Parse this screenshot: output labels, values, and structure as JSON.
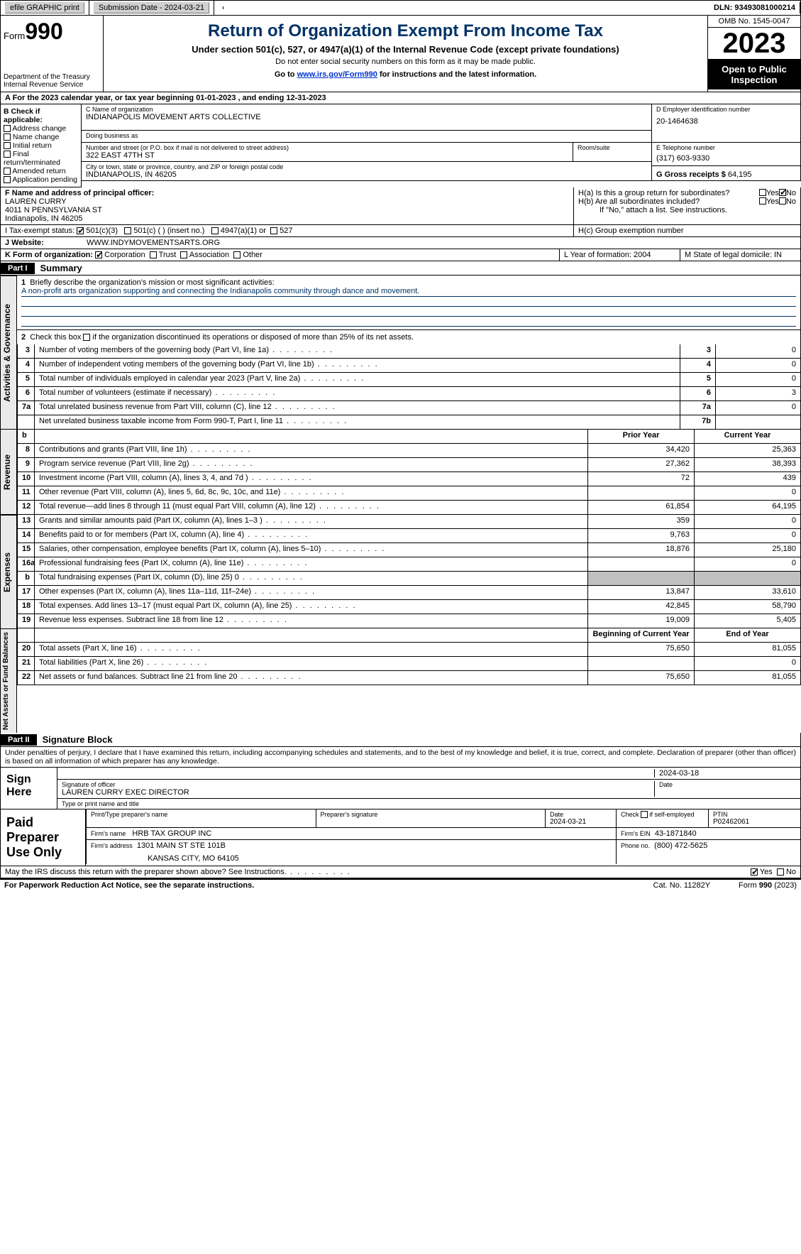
{
  "topbar": {
    "efile": "efile GRAPHIC print",
    "submission": "Submission Date - 2024-03-21",
    "dln": "DLN: 93493081000214"
  },
  "header": {
    "form_label": "Form",
    "form_no": "990",
    "dept": "Department of the Treasury Internal Revenue Service",
    "title": "Return of Organization Exempt From Income Tax",
    "subtitle": "Under section 501(c), 527, or 4947(a)(1) of the Internal Revenue Code (except private foundations)",
    "note1": "Do not enter social security numbers on this form as it may be made public.",
    "note2_pre": "Go to ",
    "note2_link": "www.irs.gov/Form990",
    "note2_post": " for instructions and the latest information.",
    "omb": "OMB No. 1545-0047",
    "year": "2023",
    "inspection": "Open to Public Inspection"
  },
  "row_a": "A For the 2023 calendar year, or tax year beginning 01-01-2023    , and ending 12-31-2023",
  "box_b": {
    "title": "B Check if applicable:",
    "items": [
      "Address change",
      "Name change",
      "Initial return",
      "Final return/terminated",
      "Amended return",
      "Application pending"
    ]
  },
  "box_c": {
    "label_name": "C Name of organization",
    "name": "INDIANAPOLIS MOVEMENT ARTS COLLECTIVE",
    "dba_label": "Doing business as",
    "addr_label": "Number and street (or P.O. box if mail is not delivered to street address)",
    "room_label": "Room/suite",
    "addr": "322 EAST 47TH ST",
    "city_label": "City or town, state or province, country, and ZIP or foreign postal code",
    "city": "INDIANAPOLIS, IN  46205"
  },
  "box_d": {
    "label": "D Employer identification number",
    "value": "20-1464638"
  },
  "box_e": {
    "label": "E Telephone number",
    "value": "(317) 603-9330"
  },
  "box_g": {
    "label": "G Gross receipts $",
    "value": "64,195"
  },
  "box_f": {
    "label": "F  Name and address of principal officer:",
    "name": "LAUREN CURRY",
    "addr1": "4011 N PENNSYLVANIA ST",
    "addr2": "Indianapolis, IN  46205"
  },
  "box_h": {
    "ha": "H(a)  Is this a group return for subordinates?",
    "hb": "H(b)  Are all subordinates included?",
    "hb_note": "If \"No,\" attach a list. See instructions.",
    "hc": "H(c)  Group exemption number",
    "yes": "Yes",
    "no": "No"
  },
  "tax_status": {
    "label": "I    Tax-exempt status:",
    "opt1": "501(c)(3)",
    "opt2": "501(c) (  ) (insert no.)",
    "opt3": "4947(a)(1) or",
    "opt4": "527"
  },
  "website": {
    "label": "J    Website:",
    "value": "WWW.INDYMOVEMENTSARTS.ORG"
  },
  "row_k": {
    "label": "K Form of organization:",
    "opts": [
      "Corporation",
      "Trust",
      "Association",
      "Other"
    ],
    "l": "L Year of formation: 2004",
    "m": "M State of legal domicile: IN"
  },
  "part1": {
    "hdr": "Part I",
    "title": "Summary"
  },
  "gov": {
    "side": "Activities & Governance",
    "q1": "Briefly describe the organization's mission or most significant activities:",
    "mission": "A non-profit arts organization supporting and connecting the Indianapolis community through dance and movement.",
    "q2": "Check this box     if the organization discontinued its operations or disposed of more than 25% of its net assets.",
    "rows": [
      {
        "n": "3",
        "t": "Number of voting members of the governing body (Part VI, line 1a)",
        "r": "3",
        "v": "0"
      },
      {
        "n": "4",
        "t": "Number of independent voting members of the governing body (Part VI, line 1b)",
        "r": "4",
        "v": "0"
      },
      {
        "n": "5",
        "t": "Total number of individuals employed in calendar year 2023 (Part V, line 2a)",
        "r": "5",
        "v": "0"
      },
      {
        "n": "6",
        "t": "Total number of volunteers (estimate if necessary)",
        "r": "6",
        "v": "3"
      },
      {
        "n": "7a",
        "t": "Total unrelated business revenue from Part VIII, column (C), line 12",
        "r": "7a",
        "v": "0"
      },
      {
        "n": "",
        "t": "Net unrelated business taxable income from Form 990-T, Part I, line 11",
        "r": "7b",
        "v": ""
      }
    ]
  },
  "rev": {
    "side": "Revenue",
    "hdr_prior": "Prior Year",
    "hdr_curr": "Current Year",
    "rows": [
      {
        "n": "8",
        "t": "Contributions and grants (Part VIII, line 1h)",
        "p": "34,420",
        "c": "25,363"
      },
      {
        "n": "9",
        "t": "Program service revenue (Part VIII, line 2g)",
        "p": "27,362",
        "c": "38,393"
      },
      {
        "n": "10",
        "t": "Investment income (Part VIII, column (A), lines 3, 4, and 7d )",
        "p": "72",
        "c": "439"
      },
      {
        "n": "11",
        "t": "Other revenue (Part VIII, column (A), lines 5, 6d, 8c, 9c, 10c, and 11e)",
        "p": "",
        "c": "0"
      },
      {
        "n": "12",
        "t": "Total revenue—add lines 8 through 11 (must equal Part VIII, column (A), line 12)",
        "p": "61,854",
        "c": "64,195"
      }
    ]
  },
  "exp": {
    "side": "Expenses",
    "rows": [
      {
        "n": "13",
        "t": "Grants and similar amounts paid (Part IX, column (A), lines 1–3 )",
        "p": "359",
        "c": "0"
      },
      {
        "n": "14",
        "t": "Benefits paid to or for members (Part IX, column (A), line 4)",
        "p": "9,763",
        "c": "0"
      },
      {
        "n": "15",
        "t": "Salaries, other compensation, employee benefits (Part IX, column (A), lines 5–10)",
        "p": "18,876",
        "c": "25,180"
      },
      {
        "n": "16a",
        "t": "Professional fundraising fees (Part IX, column (A), line 11e)",
        "p": "",
        "c": "0"
      },
      {
        "n": "b",
        "t": "Total fundraising expenses (Part IX, column (D), line 25) 0",
        "p": "shade",
        "c": "shade"
      },
      {
        "n": "17",
        "t": "Other expenses (Part IX, column (A), lines 11a–11d, 11f–24e)",
        "p": "13,847",
        "c": "33,610"
      },
      {
        "n": "18",
        "t": "Total expenses. Add lines 13–17 (must equal Part IX, column (A), line 25)",
        "p": "42,845",
        "c": "58,790"
      },
      {
        "n": "19",
        "t": "Revenue less expenses. Subtract line 18 from line 12",
        "p": "19,009",
        "c": "5,405"
      }
    ]
  },
  "net": {
    "side": "Net Assets or Fund Balances",
    "hdr_beg": "Beginning of Current Year",
    "hdr_end": "End of Year",
    "rows": [
      {
        "n": "20",
        "t": "Total assets (Part X, line 16)",
        "p": "75,650",
        "c": "81,055"
      },
      {
        "n": "21",
        "t": "Total liabilities (Part X, line 26)",
        "p": "",
        "c": "0"
      },
      {
        "n": "22",
        "t": "Net assets or fund balances. Subtract line 21 from line 20",
        "p": "75,650",
        "c": "81,055"
      }
    ]
  },
  "part2": {
    "hdr": "Part II",
    "title": "Signature Block"
  },
  "penalty": "Under penalties of perjury, I declare that I have examined this return, including accompanying schedules and statements, and to the best of my knowledge and belief, it is true, correct, and complete. Declaration of preparer (other than officer) is based on all information of which preparer has any knowledge.",
  "sign": {
    "here": "Sign Here",
    "date": "2024-03-18",
    "sig_label": "Signature of officer",
    "date_label": "Date",
    "name": "LAUREN CURRY  EXEC DIRECTOR",
    "name_label": "Type or print name and title"
  },
  "prep": {
    "title": "Paid Preparer Use Only",
    "h1": "Print/Type preparer's name",
    "h2": "Preparer's signature",
    "h3": "Date",
    "h3v": "2024-03-21",
    "h4": "Check      if self-employed",
    "h5": "PTIN",
    "h5v": "P02462061",
    "firm_label": "Firm's name",
    "firm": "HRB TAX GROUP INC",
    "ein_label": "Firm's EIN",
    "ein": "43-1871840",
    "addr_label": "Firm's address",
    "addr1": "1301 MAIN ST STE 101B",
    "addr2": "KANSAS CITY, MO  64105",
    "phone_label": "Phone no.",
    "phone": "(800) 472-5625"
  },
  "discuss": {
    "text": "May the IRS discuss this return with the preparer shown above? See Instructions.",
    "yes": "Yes",
    "no": "No"
  },
  "footer": {
    "pra": "For Paperwork Reduction Act Notice, see the separate instructions.",
    "cat": "Cat. No. 11282Y",
    "form": "Form 990 (2023)"
  }
}
